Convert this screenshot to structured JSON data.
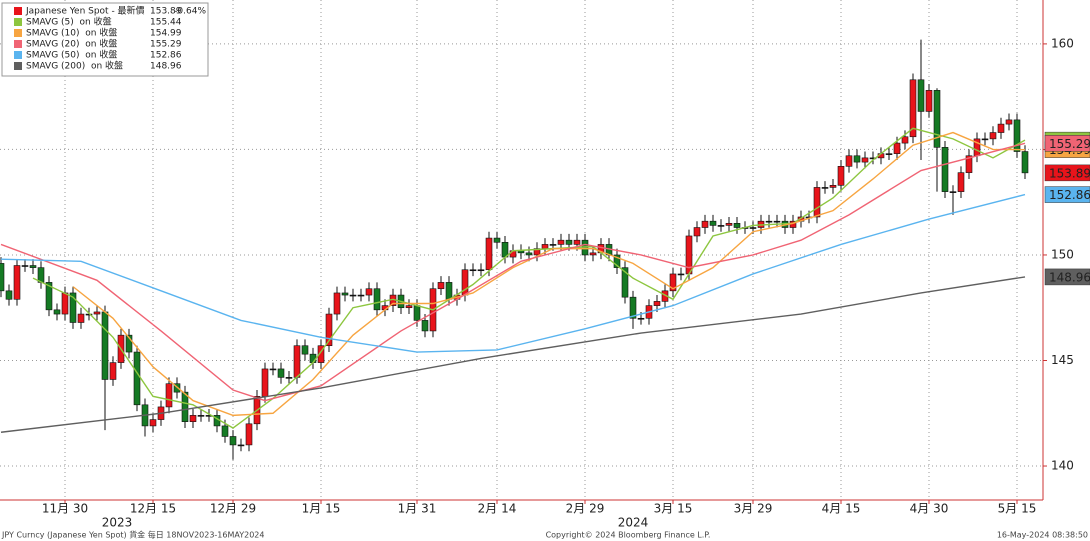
{
  "chart_data": {
    "type": "candlestick",
    "x": [
      "2023-11-20",
      "2023-11-21",
      "2023-11-22",
      "2023-11-23",
      "2023-11-24",
      "2023-11-27",
      "2023-11-28",
      "2023-11-29",
      "2023-11-30",
      "2023-12-01",
      "2023-12-04",
      "2023-12-05",
      "2023-12-06",
      "2023-12-07",
      "2023-12-08",
      "2023-12-11",
      "2023-12-12",
      "2023-12-13",
      "2023-12-14",
      "2023-12-15",
      "2023-12-18",
      "2023-12-19",
      "2023-12-20",
      "2023-12-21",
      "2023-12-22",
      "2023-12-25",
      "2023-12-26",
      "2023-12-27",
      "2023-12-28",
      "2023-12-29",
      "2024-01-01",
      "2024-01-02",
      "2024-01-03",
      "2024-01-04",
      "2024-01-05",
      "2024-01-08",
      "2024-01-09",
      "2024-01-10",
      "2024-01-11",
      "2024-01-12",
      "2024-01-15",
      "2024-01-16",
      "2024-01-17",
      "2024-01-18",
      "2024-01-19",
      "2024-01-22",
      "2024-01-23",
      "2024-01-24",
      "2024-01-25",
      "2024-01-26",
      "2024-01-29",
      "2024-01-30",
      "2024-01-31",
      "2024-02-01",
      "2024-02-02",
      "2024-02-05",
      "2024-02-06",
      "2024-02-07",
      "2024-02-08",
      "2024-02-09",
      "2024-02-12",
      "2024-02-13",
      "2024-02-14",
      "2024-02-15",
      "2024-02-16",
      "2024-02-19",
      "2024-02-20",
      "2024-02-21",
      "2024-02-22",
      "2024-02-23",
      "2024-02-26",
      "2024-02-27",
      "2024-02-28",
      "2024-02-29",
      "2024-03-01",
      "2024-03-04",
      "2024-03-05",
      "2024-03-06",
      "2024-03-07",
      "2024-03-08",
      "2024-03-11",
      "2024-03-12",
      "2024-03-13",
      "2024-03-14",
      "2024-03-15",
      "2024-03-18",
      "2024-03-19",
      "2024-03-20",
      "2024-03-21",
      "2024-03-22",
      "2024-03-25",
      "2024-03-26",
      "2024-03-27",
      "2024-03-28",
      "2024-03-29",
      "2024-04-01",
      "2024-04-02",
      "2024-04-03",
      "2024-04-04",
      "2024-04-05",
      "2024-04-08",
      "2024-04-09",
      "2024-04-10",
      "2024-04-11",
      "2024-04-12",
      "2024-04-15",
      "2024-04-16",
      "2024-04-17",
      "2024-04-18",
      "2024-04-19",
      "2024-04-22",
      "2024-04-23",
      "2024-04-24",
      "2024-04-25",
      "2024-04-26",
      "2024-04-29",
      "2024-04-30",
      "2024-05-01",
      "2024-05-02",
      "2024-05-03",
      "2024-05-06",
      "2024-05-07",
      "2024-05-08",
      "2024-05-09",
      "2024-05-10",
      "2024-05-13",
      "2024-05-14",
      "2024-05-15",
      "2024-05-16"
    ],
    "open": [
      149.6,
      148.3,
      147.9,
      149.5,
      149.5,
      149.4,
      148.7,
      147.4,
      147.2,
      148.2,
      146.8,
      147.2,
      147.2,
      147.3,
      144.1,
      144.9,
      146.2,
      145.4,
      142.9,
      141.9,
      142.2,
      142.8,
      143.9,
      143.5,
      142.1,
      142.4,
      142.4,
      142.4,
      141.9,
      141.4,
      141.0,
      141.0,
      142.0,
      143.3,
      144.6,
      144.6,
      144.2,
      144.2,
      145.7,
      145.3,
      144.9,
      145.7,
      147.2,
      148.2,
      148.1,
      148.1,
      148.1,
      148.4,
      147.4,
      147.6,
      148.1,
      147.5,
      147.6,
      146.9,
      146.4,
      148.4,
      148.7,
      147.9,
      148.1,
      149.3,
      149.3,
      149.3,
      150.8,
      150.6,
      149.9,
      150.2,
      150.1,
      150.0,
      150.3,
      150.5,
      150.5,
      150.7,
      150.5,
      150.7,
      150.0,
      150.1,
      150.5,
      150.0,
      149.4,
      148.0,
      147.0,
      147.0,
      147.6,
      147.8,
      148.3,
      149.1,
      149.1,
      150.9,
      151.3,
      151.6,
      151.4,
      151.4,
      151.5,
      151.3,
      151.3,
      151.3,
      151.6,
      151.6,
      151.6,
      151.3,
      151.6,
      151.8,
      151.8,
      153.2,
      153.2,
      153.3,
      154.2,
      154.7,
      154.4,
      154.6,
      154.6,
      154.8,
      154.8,
      155.3,
      155.6,
      158.3,
      156.8,
      157.8,
      155.1,
      153.0,
      153.0,
      153.9,
      154.7,
      155.5,
      155.5,
      155.8,
      156.2,
      156.4,
      154.9
    ],
    "high": [
      149.9,
      148.6,
      149.8,
      149.8,
      149.8,
      149.7,
      149.0,
      147.7,
      148.5,
      148.5,
      147.5,
      147.5,
      147.6,
      147.6,
      145.2,
      146.5,
      146.5,
      145.7,
      143.2,
      142.5,
      143.1,
      144.2,
      144.2,
      143.8,
      142.7,
      142.7,
      142.7,
      142.7,
      142.2,
      141.7,
      141.3,
      142.3,
      143.6,
      144.9,
      144.9,
      144.9,
      144.5,
      146.0,
      146.0,
      145.6,
      146.0,
      147.5,
      148.5,
      148.5,
      148.4,
      148.4,
      148.7,
      148.7,
      147.9,
      148.4,
      148.4,
      147.9,
      147.9,
      147.2,
      148.7,
      149.0,
      149.0,
      148.4,
      149.6,
      149.6,
      149.6,
      151.1,
      151.1,
      150.9,
      150.5,
      150.5,
      150.4,
      150.6,
      150.8,
      150.8,
      151.0,
      151.0,
      151.0,
      151.0,
      150.4,
      150.8,
      150.8,
      150.3,
      149.7,
      148.3,
      147.3,
      147.9,
      148.1,
      148.6,
      149.4,
      149.4,
      151.2,
      151.6,
      151.9,
      151.9,
      151.7,
      151.8,
      151.8,
      151.6,
      151.6,
      151.9,
      151.9,
      151.9,
      151.9,
      151.9,
      152.1,
      152.1,
      153.5,
      153.5,
      153.6,
      154.5,
      155.0,
      155.0,
      154.9,
      154.9,
      155.1,
      155.1,
      155.6,
      155.9,
      158.6,
      160.2,
      158.1,
      157.9,
      155.4,
      153.3,
      154.2,
      155.0,
      155.8,
      155.8,
      156.1,
      156.5,
      156.7,
      156.7,
      155.2
    ],
    "low": [
      148.0,
      147.6,
      147.6,
      149.2,
      149.1,
      148.4,
      147.1,
      146.9,
      146.9,
      146.5,
      146.5,
      146.9,
      146.9,
      141.7,
      143.8,
      144.6,
      145.1,
      142.6,
      141.4,
      141.6,
      141.9,
      142.5,
      143.2,
      141.8,
      141.8,
      142.1,
      142.1,
      141.6,
      141.1,
      140.3,
      140.7,
      140.7,
      141.7,
      143.0,
      144.3,
      143.9,
      143.9,
      143.9,
      145.0,
      144.6,
      144.6,
      145.4,
      146.9,
      147.8,
      147.8,
      147.8,
      147.8,
      147.1,
      147.1,
      147.3,
      147.2,
      147.2,
      146.6,
      146.1,
      146.1,
      148.1,
      147.6,
      147.6,
      147.8,
      149.0,
      149.0,
      149.0,
      150.3,
      149.6,
      149.6,
      149.8,
      149.7,
      149.7,
      150.0,
      150.2,
      150.2,
      150.2,
      150.2,
      149.7,
      149.7,
      149.8,
      149.7,
      149.1,
      147.7,
      146.5,
      146.7,
      146.7,
      147.3,
      147.5,
      148.0,
      148.8,
      148.8,
      150.6,
      151.0,
      151.1,
      151.1,
      151.1,
      151.0,
      151.0,
      151.0,
      151.0,
      151.3,
      151.3,
      151.0,
      151.0,
      151.3,
      151.5,
      151.5,
      152.9,
      152.9,
      153.0,
      153.9,
      154.1,
      154.1,
      154.3,
      154.3,
      154.5,
      154.5,
      155.0,
      155.3,
      154.5,
      156.5,
      153.0,
      152.7,
      151.9,
      152.7,
      153.6,
      154.4,
      155.2,
      155.2,
      155.5,
      155.9,
      154.6,
      153.6
    ],
    "close": [
      148.3,
      147.9,
      149.5,
      149.5,
      149.4,
      148.7,
      147.4,
      147.2,
      148.2,
      146.8,
      147.2,
      147.2,
      147.3,
      144.1,
      144.9,
      146.2,
      145.4,
      142.9,
      141.9,
      142.2,
      142.8,
      143.9,
      143.5,
      142.1,
      142.4,
      142.4,
      142.4,
      141.9,
      141.4,
      141.0,
      141.0,
      142.0,
      143.3,
      144.6,
      144.6,
      144.2,
      144.2,
      145.7,
      145.3,
      144.9,
      145.7,
      147.2,
      148.2,
      148.1,
      148.1,
      148.1,
      148.4,
      147.4,
      147.6,
      148.1,
      147.5,
      147.6,
      146.9,
      146.4,
      148.4,
      148.7,
      147.9,
      148.1,
      149.3,
      149.3,
      149.3,
      150.8,
      150.6,
      149.9,
      150.2,
      150.1,
      150.0,
      150.3,
      150.5,
      150.5,
      150.7,
      150.5,
      150.7,
      150.0,
      150.1,
      150.5,
      150.0,
      149.4,
      148.0,
      147.0,
      147.0,
      147.6,
      147.8,
      148.3,
      149.1,
      149.1,
      150.9,
      151.3,
      151.6,
      151.4,
      151.4,
      151.5,
      151.3,
      151.3,
      151.3,
      151.6,
      151.6,
      151.6,
      151.3,
      151.6,
      151.8,
      151.8,
      153.2,
      153.2,
      153.3,
      154.2,
      154.7,
      154.4,
      154.6,
      154.6,
      154.8,
      154.8,
      155.3,
      155.6,
      158.3,
      156.8,
      157.8,
      155.1,
      153.0,
      153.0,
      153.9,
      154.7,
      155.5,
      155.5,
      155.8,
      156.2,
      156.4,
      154.9,
      153.89
    ],
    "up_color": "#e8141b",
    "down_color": "#157a24",
    "ylim": [
      138.39,
      162.08
    ],
    "yticks": [
      140,
      145,
      150,
      155,
      160
    ],
    "xticks": [
      {
        "value": "2023-11-30",
        "label": "11月 30"
      },
      {
        "value": "2023-12-15",
        "label": "12月 15"
      },
      {
        "value": "2023-12-29",
        "label": "12月 29"
      },
      {
        "value": "2024-01-15",
        "label": "1月 15"
      },
      {
        "value": "2024-01-31",
        "label": "1月 31"
      },
      {
        "value": "2024-02-14",
        "label": "2月 14"
      },
      {
        "value": "2024-02-29",
        "label": "2月 29"
      },
      {
        "value": "2024-03-15",
        "label": "3月 15"
      },
      {
        "value": "2024-03-29",
        "label": "3月 29"
      },
      {
        "value": "2024-04-15",
        "label": "4月 15"
      },
      {
        "value": "2024-04-30",
        "label": "4月 30"
      },
      {
        "value": "2024-05-15",
        "label": "5月 15"
      }
    ],
    "year_labels": [
      "2023",
      "2024"
    ],
    "grid": true,
    "price": {
      "name": "Japanese Yen Spot - 最新價",
      "last": 153.89,
      "change": "-0.64%",
      "color": "#e8141b"
    },
    "series": [
      {
        "name": "SMAVG (5)  on 收盤",
        "color": "#8dc63f",
        "last": 155.44,
        "x": [
          "2023-11-24",
          "2023-12-01",
          "2023-12-08",
          "2023-12-15",
          "2023-12-22",
          "2023-12-29",
          "2024-01-05",
          "2024-01-12",
          "2024-01-19",
          "2024-01-26",
          "2024-02-02",
          "2024-02-09",
          "2024-02-16",
          "2024-02-23",
          "2024-03-01",
          "2024-03-08",
          "2024-03-15",
          "2024-03-22",
          "2024-03-29",
          "2024-04-05",
          "2024-04-12",
          "2024-04-19",
          "2024-04-26",
          "2024-05-03",
          "2024-05-10",
          "2024-05-16"
        ],
        "values": [
          148.9,
          148.0,
          146.1,
          143.3,
          142.9,
          141.8,
          143.2,
          144.9,
          147.5,
          147.9,
          147.4,
          148.6,
          150.2,
          150.3,
          150.4,
          148.9,
          147.9,
          150.9,
          151.4,
          151.5,
          152.7,
          154.5,
          156.0,
          155.5,
          154.6,
          155.44
        ]
      },
      {
        "name": "SMAVG (10)  on 收盤",
        "color": "#f7a541",
        "last": 154.99,
        "x": [
          "2023-12-01",
          "2023-12-08",
          "2023-12-15",
          "2023-12-22",
          "2023-12-29",
          "2024-01-05",
          "2024-01-12",
          "2024-01-19",
          "2024-01-26",
          "2024-02-02",
          "2024-02-09",
          "2024-02-16",
          "2024-02-23",
          "2024-03-01",
          "2024-03-08",
          "2024-03-15",
          "2024-03-22",
          "2024-03-29",
          "2024-04-05",
          "2024-04-12",
          "2024-04-19",
          "2024-04-26",
          "2024-05-03",
          "2024-05-10",
          "2024-05-16"
        ],
        "values": [
          148.5,
          147.0,
          144.7,
          143.1,
          142.4,
          142.5,
          144.1,
          146.2,
          147.7,
          147.7,
          148.2,
          149.4,
          150.3,
          150.3,
          149.6,
          148.4,
          149.4,
          151.1,
          151.5,
          152.1,
          153.6,
          155.2,
          155.8,
          155.0,
          154.99
        ]
      },
      {
        "name": "SMAVG (20)  on 收盤",
        "color": "#f06474",
        "last": 155.29,
        "x": [
          "2023-11-20",
          "2023-12-06",
          "2023-12-18",
          "2023-12-29",
          "2024-01-04",
          "2024-01-15",
          "2024-01-29",
          "2024-02-07",
          "2024-02-19",
          "2024-02-29",
          "2024-03-11",
          "2024-03-19",
          "2024-03-29",
          "2024-04-08",
          "2024-04-16",
          "2024-04-29",
          "2024-05-16"
        ],
        "values": [
          150.5,
          148.8,
          146.4,
          143.6,
          143.1,
          143.8,
          146.4,
          147.9,
          149.7,
          150.5,
          150.0,
          149.4,
          150.0,
          150.7,
          151.9,
          154.0,
          155.29
        ]
      },
      {
        "name": "SMAVG (50)  on 收盤",
        "color": "#5ab4ef",
        "last": 152.86,
        "x": [
          "2023-11-20",
          "2023-12-04",
          "2023-12-18",
          "2024-01-01",
          "2024-01-15",
          "2024-01-31",
          "2024-02-14",
          "2024-02-29",
          "2024-03-15",
          "2024-03-29",
          "2024-04-15",
          "2024-04-30",
          "2024-05-16"
        ],
        "values": [
          149.8,
          149.7,
          148.3,
          146.9,
          146.1,
          145.4,
          145.5,
          146.5,
          147.6,
          149.1,
          150.5,
          151.7,
          152.86
        ]
      },
      {
        "name": "SMAVG (200)  on 收盤",
        "color": "#5f5f5f",
        "last": 148.96,
        "x": [
          "2023-11-20",
          "2023-12-18",
          "2024-01-15",
          "2024-02-12",
          "2024-03-11",
          "2024-04-08",
          "2024-04-29",
          "2024-05-16"
        ],
        "values": [
          141.6,
          142.5,
          143.7,
          145.1,
          146.3,
          147.2,
          148.2,
          148.96
        ]
      }
    ],
    "footer": {
      "left": "JPY Curncy (Japanese Yen Spot) 貨金  每日 18NOV2023-16MAY2024",
      "center": "Copyright© 2024 Bloomberg Finance L.P.",
      "right": "16-May-2024 08:38:50"
    }
  }
}
